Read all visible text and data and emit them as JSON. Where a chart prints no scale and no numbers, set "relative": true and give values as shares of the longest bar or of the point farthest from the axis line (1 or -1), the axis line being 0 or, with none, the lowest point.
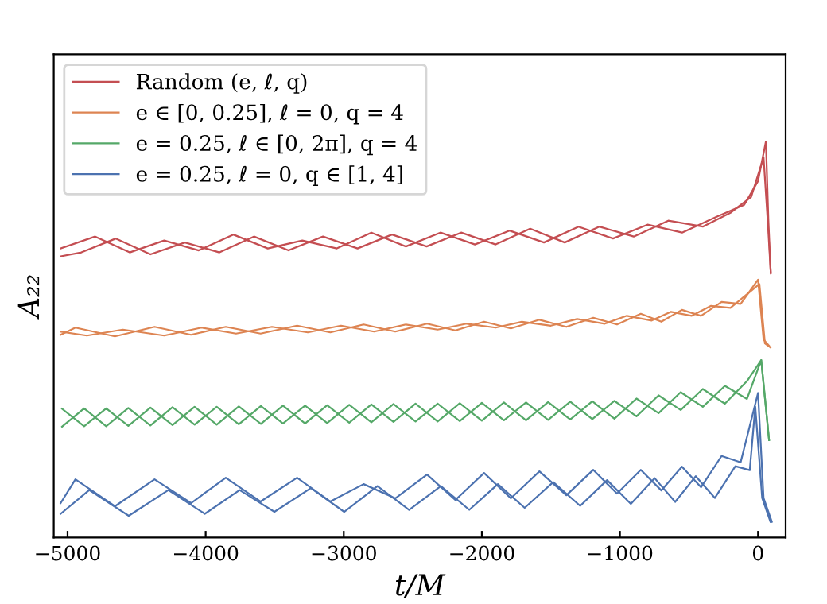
{
  "chart_data": {
    "type": "line",
    "relative": true,
    "xlabel": "t/M",
    "ylabel": "A₂₂",
    "xlim": [
      -5100,
      200
    ],
    "xticks": [
      {
        "value": -5000,
        "label": "−5000"
      },
      {
        "value": -4000,
        "label": "−4000"
      },
      {
        "value": -3000,
        "label": "−3000"
      },
      {
        "value": -2000,
        "label": "−2000"
      },
      {
        "value": -1000,
        "label": "−1000"
      },
      0
    ],
    "grid": false,
    "legend": "top left",
    "marker": "none",
    "line_style": "solid",
    "series": [
      {
        "name": "Random (e, ℓ, q)",
        "color": "#c44e52",
        "x": [
          -5050,
          -4800,
          -4550,
          -4300,
          -4050,
          -3800,
          -3550,
          -3300,
          -3050,
          -2800,
          -2550,
          -2300,
          -2050,
          -1800,
          -1550,
          -1300,
          -1050,
          -800,
          -550,
          -300,
          -100,
          0,
          57,
          75,
          92
        ],
        "values": [
          0.73,
          0.76,
          0.72,
          0.75,
          0.725,
          0.765,
          0.73,
          0.75,
          0.73,
          0.77,
          0.735,
          0.77,
          0.74,
          0.775,
          0.745,
          0.785,
          0.755,
          0.79,
          0.77,
          0.81,
          0.84,
          0.9,
          1.0,
          0.8,
          0.667
        ]
      },
      {
        "color": "#c44e52",
        "x": [
          -5050,
          -4900,
          -4650,
          -4400,
          -4150,
          -3900,
          -3650,
          -3400,
          -3150,
          -2900,
          -2650,
          -2400,
          -2150,
          -1900,
          -1650,
          -1400,
          -1150,
          -900,
          -650,
          -400,
          -200,
          -50,
          40,
          70,
          92
        ],
        "values": [
          0.71,
          0.72,
          0.755,
          0.715,
          0.745,
          0.72,
          0.76,
          0.725,
          0.76,
          0.73,
          0.765,
          0.735,
          0.77,
          0.74,
          0.78,
          0.745,
          0.785,
          0.76,
          0.8,
          0.785,
          0.82,
          0.86,
          0.96,
          0.8,
          0.67
        ]
      },
      {
        "name": "e ∈ [0, 0.25], ℓ = 0, q = 4",
        "color": "#dd8452",
        "x": [
          -5050,
          -4943,
          -4657,
          -4370,
          -4106,
          -3854,
          -3602,
          -3338,
          -3097,
          -2856,
          -2627,
          -2397,
          -2191,
          -1984,
          -1790,
          -1583,
          -1388,
          -1193,
          -1021,
          -849,
          -700,
          -551,
          -413,
          -264,
          -126,
          0,
          40,
          80
        ],
        "values": [
          0.512,
          0.53,
          0.508,
          0.532,
          0.512,
          0.532,
          0.515,
          0.535,
          0.518,
          0.538,
          0.52,
          0.54,
          0.523,
          0.545,
          0.528,
          0.55,
          0.532,
          0.555,
          0.538,
          0.565,
          0.545,
          0.575,
          0.56,
          0.595,
          0.59,
          0.651,
          0.5,
          0.484
        ]
      },
      {
        "color": "#dd8452",
        "x": [
          -5050,
          -4860,
          -4600,
          -4300,
          -4030,
          -3780,
          -3520,
          -3260,
          -3020,
          -2780,
          -2550,
          -2320,
          -2110,
          -1900,
          -1710,
          -1500,
          -1310,
          -1110,
          -950,
          -770,
          -630,
          -480,
          -340,
          -200,
          -60,
          10,
          50,
          90
        ],
        "values": [
          0.52,
          0.51,
          0.525,
          0.51,
          0.53,
          0.515,
          0.532,
          0.518,
          0.535,
          0.52,
          0.538,
          0.525,
          0.54,
          0.53,
          0.545,
          0.535,
          0.552,
          0.54,
          0.56,
          0.548,
          0.57,
          0.56,
          0.585,
          0.58,
          0.62,
          0.64,
          0.49,
          0.48
        ]
      },
      {
        "name": "e = 0.25, ℓ ∈ [0, 2π], q = 4",
        "color": "#55a868",
        "x": [
          -5040,
          -4880,
          -4720,
          -4560,
          -4400,
          -4240,
          -4080,
          -3920,
          -3760,
          -3600,
          -3440,
          -3280,
          -3120,
          -2960,
          -2800,
          -2640,
          -2480,
          -2320,
          -2160,
          -2000,
          -1840,
          -1680,
          -1520,
          -1360,
          -1200,
          -1040,
          -880,
          -720,
          -560,
          -400,
          -240,
          -80,
          23,
          80
        ],
        "values": [
          0.325,
          0.281,
          0.326,
          0.282,
          0.328,
          0.284,
          0.33,
          0.285,
          0.331,
          0.287,
          0.333,
          0.288,
          0.334,
          0.29,
          0.336,
          0.292,
          0.338,
          0.293,
          0.339,
          0.295,
          0.341,
          0.296,
          0.342,
          0.298,
          0.344,
          0.3,
          0.351,
          0.314,
          0.367,
          0.33,
          0.383,
          0.35,
          0.448,
          0.246
        ]
      },
      {
        "color": "#55a868",
        "x": [
          -5040,
          -4880,
          -4720,
          -4560,
          -4400,
          -4240,
          -4080,
          -3920,
          -3760,
          -3600,
          -3440,
          -3280,
          -3120,
          -2960,
          -2800,
          -2640,
          -2480,
          -2320,
          -2160,
          -2000,
          -1840,
          -1680,
          -1520,
          -1360,
          -1200,
          -1040,
          -880,
          -720,
          -560,
          -400,
          -240,
          -80,
          23,
          80
        ],
        "values": [
          0.28,
          0.326,
          0.281,
          0.327,
          0.283,
          0.329,
          0.285,
          0.33,
          0.286,
          0.332,
          0.288,
          0.333,
          0.289,
          0.335,
          0.291,
          0.337,
          0.293,
          0.338,
          0.294,
          0.34,
          0.296,
          0.341,
          0.297,
          0.343,
          0.299,
          0.345,
          0.306,
          0.359,
          0.322,
          0.375,
          0.338,
          0.395,
          0.448,
          0.246
        ]
      },
      {
        "name": "e = 0.25, ℓ = 0, q ∈ [1, 4]",
        "color": "#4c72b0",
        "x": [
          -5050,
          -4943,
          -4657,
          -4370,
          -4106,
          -3854,
          -3602,
          -3338,
          -3097,
          -2856,
          -2627,
          -2397,
          -2191,
          -1984,
          -1790,
          -1583,
          -1388,
          -1193,
          -1021,
          -849,
          -700,
          -551,
          -413,
          -264,
          -126,
          0,
          40,
          100
        ],
        "values": [
          0.087,
          0.147,
          0.079,
          0.147,
          0.087,
          0.151,
          0.091,
          0.151,
          0.091,
          0.135,
          0.099,
          0.159,
          0.095,
          0.163,
          0.099,
          0.167,
          0.107,
          0.171,
          0.111,
          0.171,
          0.119,
          0.179,
          0.127,
          0.206,
          0.19,
          0.365,
          0.1,
          0.04
        ]
      },
      {
        "color": "#4c72b0",
        "x": [
          -5050,
          -4843,
          -4557,
          -4270,
          -4006,
          -3754,
          -3502,
          -3238,
          -2997,
          -2756,
          -2527,
          -2297,
          -2091,
          -1884,
          -1690,
          -1483,
          -1288,
          -1093,
          -921,
          -749,
          -600,
          -451,
          -313,
          -164,
          -60,
          -20,
          30,
          90
        ],
        "values": [
          0.06,
          0.12,
          0.055,
          0.12,
          0.06,
          0.12,
          0.065,
          0.125,
          0.065,
          0.13,
          0.07,
          0.13,
          0.07,
          0.135,
          0.075,
          0.14,
          0.08,
          0.145,
          0.085,
          0.15,
          0.09,
          0.155,
          0.1,
          0.18,
          0.17,
          0.33,
          0.1,
          0.04
        ]
      }
    ]
  }
}
